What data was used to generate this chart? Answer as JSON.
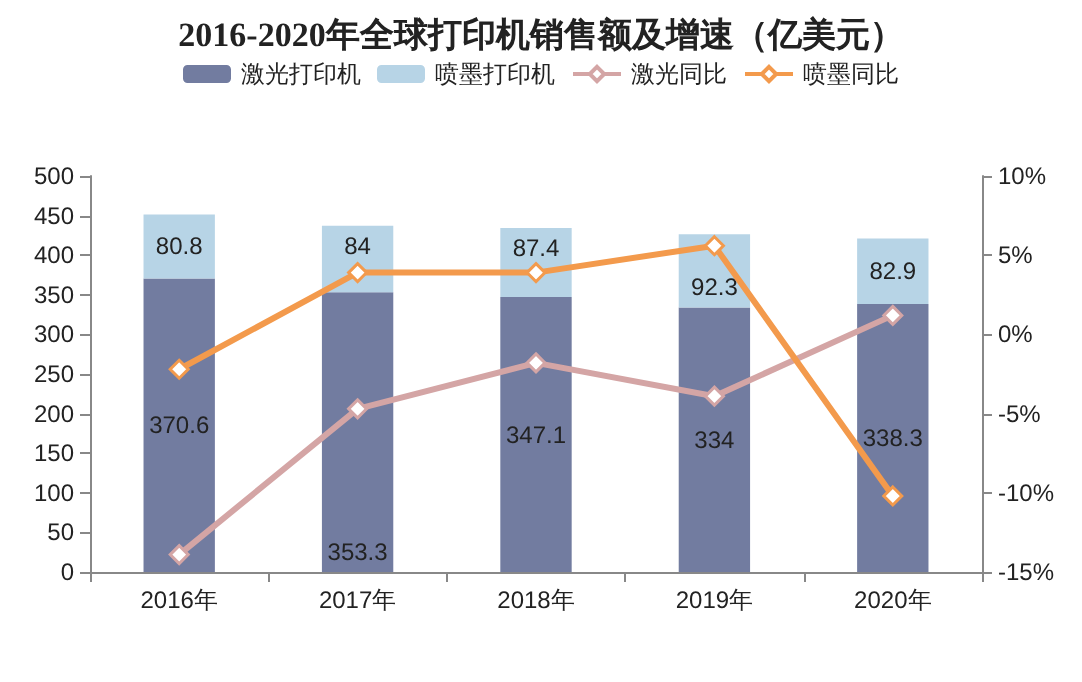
{
  "chart_data": {
    "type": "bar",
    "title": "2016-2020年全球打印机销售额及增速（亿美元）",
    "categories": [
      "2016年",
      "2017年",
      "2018年",
      "2019年",
      "2020年"
    ],
    "stacked": true,
    "legend": "top",
    "grid": false,
    "marker": "diamond",
    "ylim": [
      0,
      500
    ],
    "yticks": [
      0,
      50,
      100,
      150,
      200,
      250,
      300,
      350,
      400,
      450,
      500
    ],
    "y2lim": [
      -15,
      10
    ],
    "y2ticks": [
      {
        "value": -15,
        "label": "-15%"
      },
      {
        "value": -10,
        "label": "-10%"
      },
      {
        "value": -5,
        "label": "-5%"
      },
      {
        "value": 0,
        "label": "0%"
      },
      {
        "value": 5,
        "label": "5%"
      },
      {
        "value": 10,
        "label": "10%"
      }
    ],
    "series": [
      {
        "name": "激光打印机",
        "color": "#727ca0",
        "values": [
          370.6,
          353.3,
          347.1,
          334,
          338.3
        ],
        "value_labels": [
          "370.6",
          "353.3",
          "347.1",
          "334",
          "338.3"
        ]
      },
      {
        "name": "喷墨打印机",
        "color": "#b7d4e6",
        "values": [
          80.8,
          84,
          87.4,
          92.3,
          82.9
        ],
        "value_labels": [
          "80.8",
          "84",
          "87.4",
          "92.3",
          "82.9"
        ]
      },
      {
        "name": "激光同比",
        "type": "line",
        "axis": "y2",
        "color": "#d4a5a5",
        "values": [
          -13.9,
          -4.7,
          -1.8,
          -3.9,
          1.2
        ]
      },
      {
        "name": "喷墨同比",
        "type": "line",
        "axis": "y2",
        "color": "#f39a4c",
        "values": [
          -2.2,
          3.9,
          3.9,
          5.6,
          -10.2
        ]
      }
    ]
  }
}
